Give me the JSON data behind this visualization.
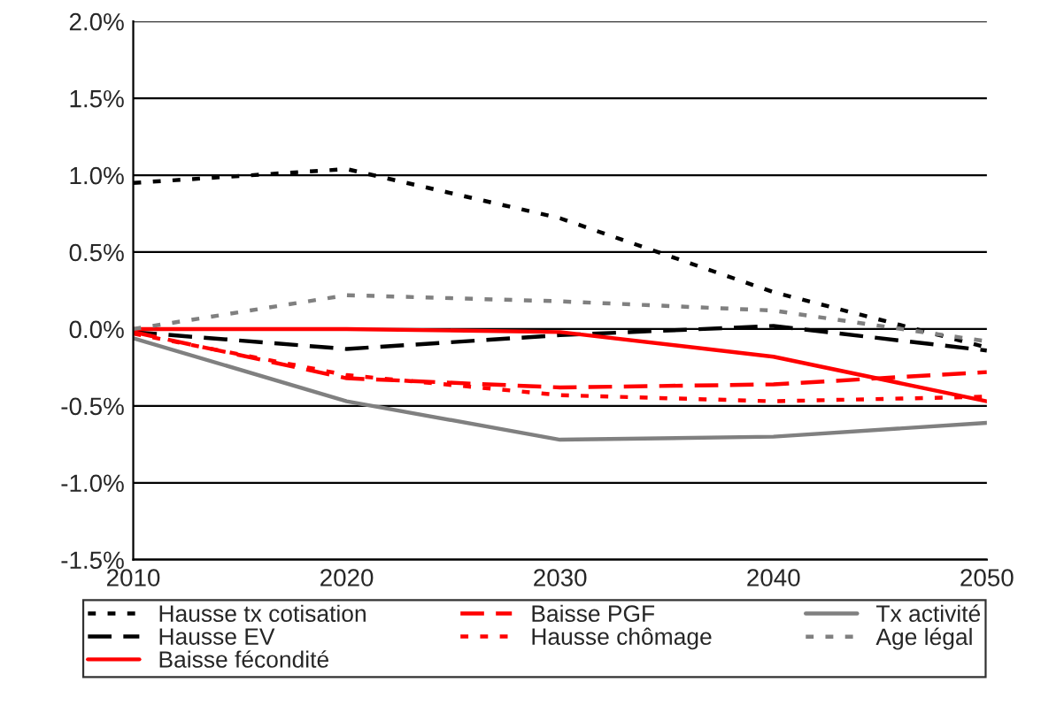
{
  "chart_data": {
    "type": "line",
    "x": [
      2010,
      2020,
      2030,
      2040,
      2050
    ],
    "series": [
      {
        "name": "Hausse tx cotisation",
        "color": "#000000",
        "line_style": "dotted",
        "values": [
          0.95,
          1.04,
          0.72,
          0.24,
          -0.12
        ]
      },
      {
        "name": "Hausse EV",
        "color": "#000000",
        "line_style": "dashed",
        "values": [
          -0.02,
          -0.13,
          -0.04,
          0.02,
          -0.14
        ]
      },
      {
        "name": "Baisse fécondité",
        "color": "#ff0000",
        "line_style": "solid",
        "values": [
          0.0,
          0.0,
          -0.02,
          -0.18,
          -0.47
        ]
      },
      {
        "name": "Baisse PGF",
        "color": "#ff0000",
        "line_style": "dashed",
        "values": [
          -0.02,
          -0.32,
          -0.38,
          -0.36,
          -0.28
        ]
      },
      {
        "name": "Hausse chômage",
        "color": "#ff0000",
        "line_style": "dotted",
        "values": [
          -0.03,
          -0.3,
          -0.43,
          -0.47,
          -0.44
        ]
      },
      {
        "name": "Tx activité",
        "color": "#808080",
        "line_style": "solid",
        "values": [
          -0.06,
          -0.47,
          -0.72,
          -0.7,
          -0.61
        ]
      },
      {
        "name": "Age légal",
        "color": "#808080",
        "line_style": "dotted",
        "values": [
          0.0,
          0.22,
          0.18,
          0.12,
          -0.08
        ]
      }
    ],
    "xlim": [
      2010,
      2050
    ],
    "xticks": [
      2010,
      2020,
      2030,
      2040,
      2050
    ],
    "ylim": [
      -1.5,
      2.0
    ],
    "yticks": [
      {
        "value": -1.5,
        "label": "-1.5%"
      },
      {
        "value": -1.0,
        "label": "-1.0%"
      },
      {
        "value": -0.5,
        "label": "-0.5%"
      },
      {
        "value": 0.0,
        "label": "0.0%"
      },
      {
        "value": 0.5,
        "label": "0.5%"
      },
      {
        "value": 1.0,
        "label": "1.0%"
      },
      {
        "value": 1.5,
        "label": "1.5%"
      },
      {
        "value": 2.0,
        "label": "2.0%"
      }
    ],
    "grid": "y",
    "legend": "bottom",
    "marker": "none"
  }
}
